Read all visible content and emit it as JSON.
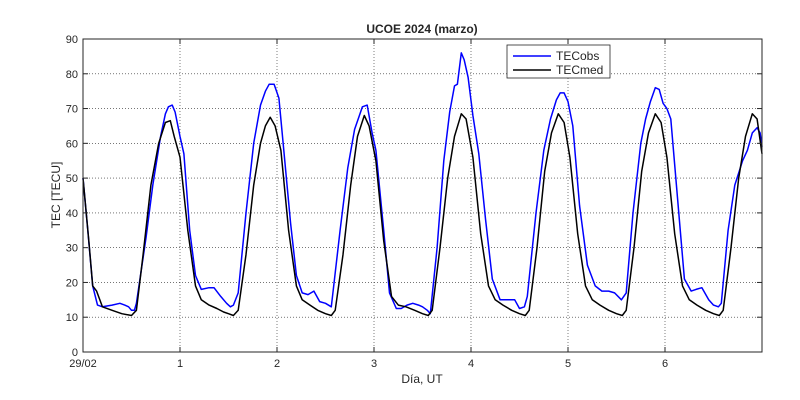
{
  "chart_data": {
    "type": "line",
    "title": "UCOE 2024 (marzo)",
    "xlabel": "Día, UT",
    "ylabel": "TEC [TECU]",
    "xlim": [
      0,
      7
    ],
    "ylim": [
      0,
      90
    ],
    "grid": true,
    "legend_position": "top-right",
    "x_ticks": [
      0,
      1,
      2,
      3,
      4,
      5,
      6
    ],
    "x_tick_labels": [
      "29/02",
      "1",
      "2",
      "3",
      "4",
      "5",
      "6"
    ],
    "y_ticks": [
      0,
      10,
      20,
      30,
      40,
      50,
      60,
      70,
      80,
      90
    ],
    "y_tick_labels": [
      "0",
      "10",
      "20",
      "30",
      "40",
      "50",
      "60",
      "70",
      "80",
      "90"
    ],
    "series": [
      {
        "name": "TECobs",
        "color": "#0000ff",
        "points": [
          [
            0.0,
            50
          ],
          [
            0.05,
            35
          ],
          [
            0.1,
            19
          ],
          [
            0.15,
            13.5
          ],
          [
            0.2,
            13
          ],
          [
            0.3,
            13.5
          ],
          [
            0.38,
            14
          ],
          [
            0.43,
            13.5
          ],
          [
            0.47,
            13
          ],
          [
            0.5,
            12
          ],
          [
            0.53,
            12
          ],
          [
            0.55,
            14
          ],
          [
            0.65,
            33
          ],
          [
            0.72,
            48
          ],
          [
            0.8,
            62
          ],
          [
            0.85,
            68.5
          ],
          [
            0.88,
            70.5
          ],
          [
            0.92,
            71
          ],
          [
            0.95,
            69
          ],
          [
            1.0,
            62
          ],
          [
            1.04,
            57
          ],
          [
            1.1,
            35
          ],
          [
            1.16,
            22
          ],
          [
            1.22,
            18
          ],
          [
            1.3,
            18.5
          ],
          [
            1.35,
            18.5
          ],
          [
            1.42,
            16
          ],
          [
            1.48,
            14
          ],
          [
            1.52,
            13
          ],
          [
            1.55,
            13.5
          ],
          [
            1.6,
            17
          ],
          [
            1.68,
            40
          ],
          [
            1.76,
            60
          ],
          [
            1.83,
            71
          ],
          [
            1.88,
            75
          ],
          [
            1.92,
            77
          ],
          [
            1.97,
            77
          ],
          [
            2.02,
            73
          ],
          [
            2.07,
            58
          ],
          [
            2.14,
            37
          ],
          [
            2.2,
            22
          ],
          [
            2.26,
            17
          ],
          [
            2.32,
            16.5
          ],
          [
            2.38,
            17.5
          ],
          [
            2.44,
            14.5
          ],
          [
            2.5,
            14
          ],
          [
            2.56,
            13
          ],
          [
            2.65,
            35
          ],
          [
            2.73,
            53
          ],
          [
            2.8,
            64
          ],
          [
            2.85,
            68
          ],
          [
            2.88,
            70.5
          ],
          [
            2.93,
            71
          ],
          [
            2.98,
            63
          ],
          [
            3.02,
            58
          ],
          [
            3.1,
            35
          ],
          [
            3.16,
            17
          ],
          [
            3.23,
            12.5
          ],
          [
            3.28,
            12.5
          ],
          [
            3.34,
            13.5
          ],
          [
            3.4,
            14
          ],
          [
            3.46,
            13.5
          ],
          [
            3.5,
            13
          ],
          [
            3.55,
            12
          ],
          [
            3.58,
            11
          ],
          [
            3.65,
            30
          ],
          [
            3.72,
            55
          ],
          [
            3.78,
            69
          ],
          [
            3.83,
            76.5
          ],
          [
            3.86,
            77
          ],
          [
            3.9,
            86
          ],
          [
            3.93,
            84
          ],
          [
            3.97,
            79
          ],
          [
            4.02,
            68
          ],
          [
            4.08,
            57
          ],
          [
            4.15,
            38
          ],
          [
            4.22,
            21
          ],
          [
            4.3,
            15
          ],
          [
            4.38,
            15
          ],
          [
            4.45,
            15
          ],
          [
            4.5,
            12.5
          ],
          [
            4.55,
            13
          ],
          [
            4.58,
            16
          ],
          [
            4.67,
            40
          ],
          [
            4.75,
            58
          ],
          [
            4.82,
            67
          ],
          [
            4.88,
            72.5
          ],
          [
            4.92,
            74.5
          ],
          [
            4.96,
            74.5
          ],
          [
            5.0,
            72
          ],
          [
            5.05,
            65
          ],
          [
            5.12,
            42
          ],
          [
            5.2,
            25
          ],
          [
            5.28,
            19
          ],
          [
            5.35,
            17.5
          ],
          [
            5.42,
            17.5
          ],
          [
            5.48,
            17
          ],
          [
            5.55,
            15
          ],
          [
            5.6,
            17
          ],
          [
            5.67,
            40
          ],
          [
            5.75,
            60
          ],
          [
            5.8,
            67
          ],
          [
            5.85,
            72
          ],
          [
            5.9,
            76
          ],
          [
            5.94,
            75.5
          ],
          [
            5.98,
            71.5
          ],
          [
            6.02,
            70
          ],
          [
            6.06,
            67
          ],
          [
            6.13,
            44
          ],
          [
            6.2,
            21
          ],
          [
            6.27,
            17.5
          ],
          [
            6.32,
            18
          ],
          [
            6.38,
            18.5
          ],
          [
            6.45,
            15
          ],
          [
            6.5,
            13.5
          ],
          [
            6.55,
            13
          ],
          [
            6.58,
            14
          ],
          [
            6.65,
            35
          ],
          [
            6.72,
            48
          ],
          [
            6.8,
            55
          ],
          [
            6.85,
            58
          ],
          [
            6.9,
            63
          ],
          [
            6.95,
            64.5
          ],
          [
            6.98,
            63
          ],
          [
            7.0,
            59
          ]
        ]
      },
      {
        "name": "TECmed",
        "color": "#000000",
        "points": [
          [
            0.0,
            50
          ],
          [
            0.06,
            32
          ],
          [
            0.1,
            19
          ],
          [
            0.14,
            17.5
          ],
          [
            0.2,
            13
          ],
          [
            0.3,
            12
          ],
          [
            0.4,
            11
          ],
          [
            0.5,
            10.5
          ],
          [
            0.55,
            12
          ],
          [
            0.62,
            28
          ],
          [
            0.7,
            48
          ],
          [
            0.78,
            60
          ],
          [
            0.85,
            66
          ],
          [
            0.9,
            66.5
          ],
          [
            0.94,
            62
          ],
          [
            1.0,
            56
          ],
          [
            1.08,
            35
          ],
          [
            1.16,
            19
          ],
          [
            1.22,
            15
          ],
          [
            1.3,
            13.5
          ],
          [
            1.38,
            12.5
          ],
          [
            1.45,
            11.5
          ],
          [
            1.5,
            11
          ],
          [
            1.55,
            10.5
          ],
          [
            1.6,
            12
          ],
          [
            1.68,
            28
          ],
          [
            1.76,
            48
          ],
          [
            1.83,
            60
          ],
          [
            1.88,
            65
          ],
          [
            1.93,
            67.5
          ],
          [
            1.98,
            65
          ],
          [
            2.04,
            58
          ],
          [
            2.12,
            35
          ],
          [
            2.2,
            19
          ],
          [
            2.26,
            15
          ],
          [
            2.34,
            13.5
          ],
          [
            2.42,
            12
          ],
          [
            2.5,
            11
          ],
          [
            2.56,
            10.5
          ],
          [
            2.6,
            12
          ],
          [
            2.68,
            28
          ],
          [
            2.76,
            48
          ],
          [
            2.83,
            62
          ],
          [
            2.9,
            68
          ],
          [
            2.95,
            65
          ],
          [
            3.02,
            55
          ],
          [
            3.1,
            32
          ],
          [
            3.18,
            16
          ],
          [
            3.25,
            13.5
          ],
          [
            3.33,
            13
          ],
          [
            3.42,
            12
          ],
          [
            3.5,
            11
          ],
          [
            3.56,
            10.5
          ],
          [
            3.6,
            12
          ],
          [
            3.68,
            30
          ],
          [
            3.76,
            50
          ],
          [
            3.83,
            62
          ],
          [
            3.9,
            68.5
          ],
          [
            3.95,
            67
          ],
          [
            4.02,
            56
          ],
          [
            4.1,
            34
          ],
          [
            4.18,
            19
          ],
          [
            4.25,
            15
          ],
          [
            4.33,
            13.5
          ],
          [
            4.42,
            12
          ],
          [
            4.5,
            11
          ],
          [
            4.56,
            10.5
          ],
          [
            4.6,
            12
          ],
          [
            4.68,
            30
          ],
          [
            4.76,
            52
          ],
          [
            4.83,
            63
          ],
          [
            4.9,
            68.5
          ],
          [
            4.96,
            66
          ],
          [
            5.02,
            56
          ],
          [
            5.1,
            34
          ],
          [
            5.18,
            19
          ],
          [
            5.25,
            15
          ],
          [
            5.33,
            13.5
          ],
          [
            5.42,
            12
          ],
          [
            5.5,
            11
          ],
          [
            5.56,
            10.5
          ],
          [
            5.6,
            12
          ],
          [
            5.68,
            30
          ],
          [
            5.76,
            52
          ],
          [
            5.83,
            63
          ],
          [
            5.9,
            68.5
          ],
          [
            5.96,
            66
          ],
          [
            6.02,
            56
          ],
          [
            6.1,
            34
          ],
          [
            6.18,
            19
          ],
          [
            6.25,
            15
          ],
          [
            6.33,
            13.5
          ],
          [
            6.42,
            12
          ],
          [
            6.5,
            11
          ],
          [
            6.56,
            10.5
          ],
          [
            6.6,
            12
          ],
          [
            6.68,
            30
          ],
          [
            6.76,
            50
          ],
          [
            6.83,
            62
          ],
          [
            6.9,
            68.5
          ],
          [
            6.95,
            67
          ],
          [
            7.0,
            57
          ]
        ]
      }
    ]
  }
}
